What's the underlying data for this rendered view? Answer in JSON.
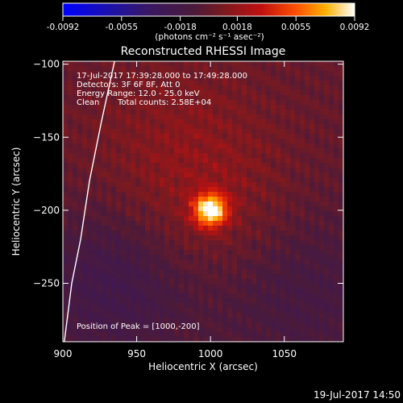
{
  "chart_data": {
    "type": "heatmap",
    "title": "Reconstructed RHESSI Image",
    "xlabel": "Heliocentric X (arcsec)",
    "ylabel": "Heliocentric Y (arcsec)",
    "xlim": [
      900,
      1090
    ],
    "ylim": [
      -290,
      -98
    ],
    "x_ticks": [
      900,
      950,
      1000,
      1050
    ],
    "y_ticks": [
      -100,
      -150,
      -200,
      -250
    ],
    "colorbar": {
      "range": [
        -0.0092,
        0.0092
      ],
      "tick_values": [
        -0.0092,
        -0.0055,
        -0.0018,
        0.0018,
        0.0055,
        0.0092
      ],
      "tick_labels": [
        "-0.0092",
        "-0.0055",
        "-0.0018",
        "0.0018",
        "0.0055",
        "0.0092"
      ],
      "unit_label": "(photons cm⁻² s⁻¹ asec⁻²)"
    },
    "annotations": {
      "time_range": "17-Jul-2017 17:39:28.000 to 17:49:28.000",
      "detectors": "Detectors: 3F 6F 8F, Att 0",
      "energy": "Energy Range: 12.0 - 25.0 keV",
      "method": "Clean",
      "counts": "Total counts: 2.58E+04",
      "peak": "Position of Peak = [1000,-200]"
    },
    "peak": {
      "x": 1000,
      "y": -200,
      "value": 0.0092
    },
    "limb_curve": [
      [
        935,
        -98
      ],
      [
        926,
        -140
      ],
      [
        918,
        -180
      ],
      [
        912,
        -220
      ],
      [
        906,
        -250
      ],
      [
        901,
        -290
      ]
    ],
    "timestamp": "19-Jul-2017 14:50"
  }
}
